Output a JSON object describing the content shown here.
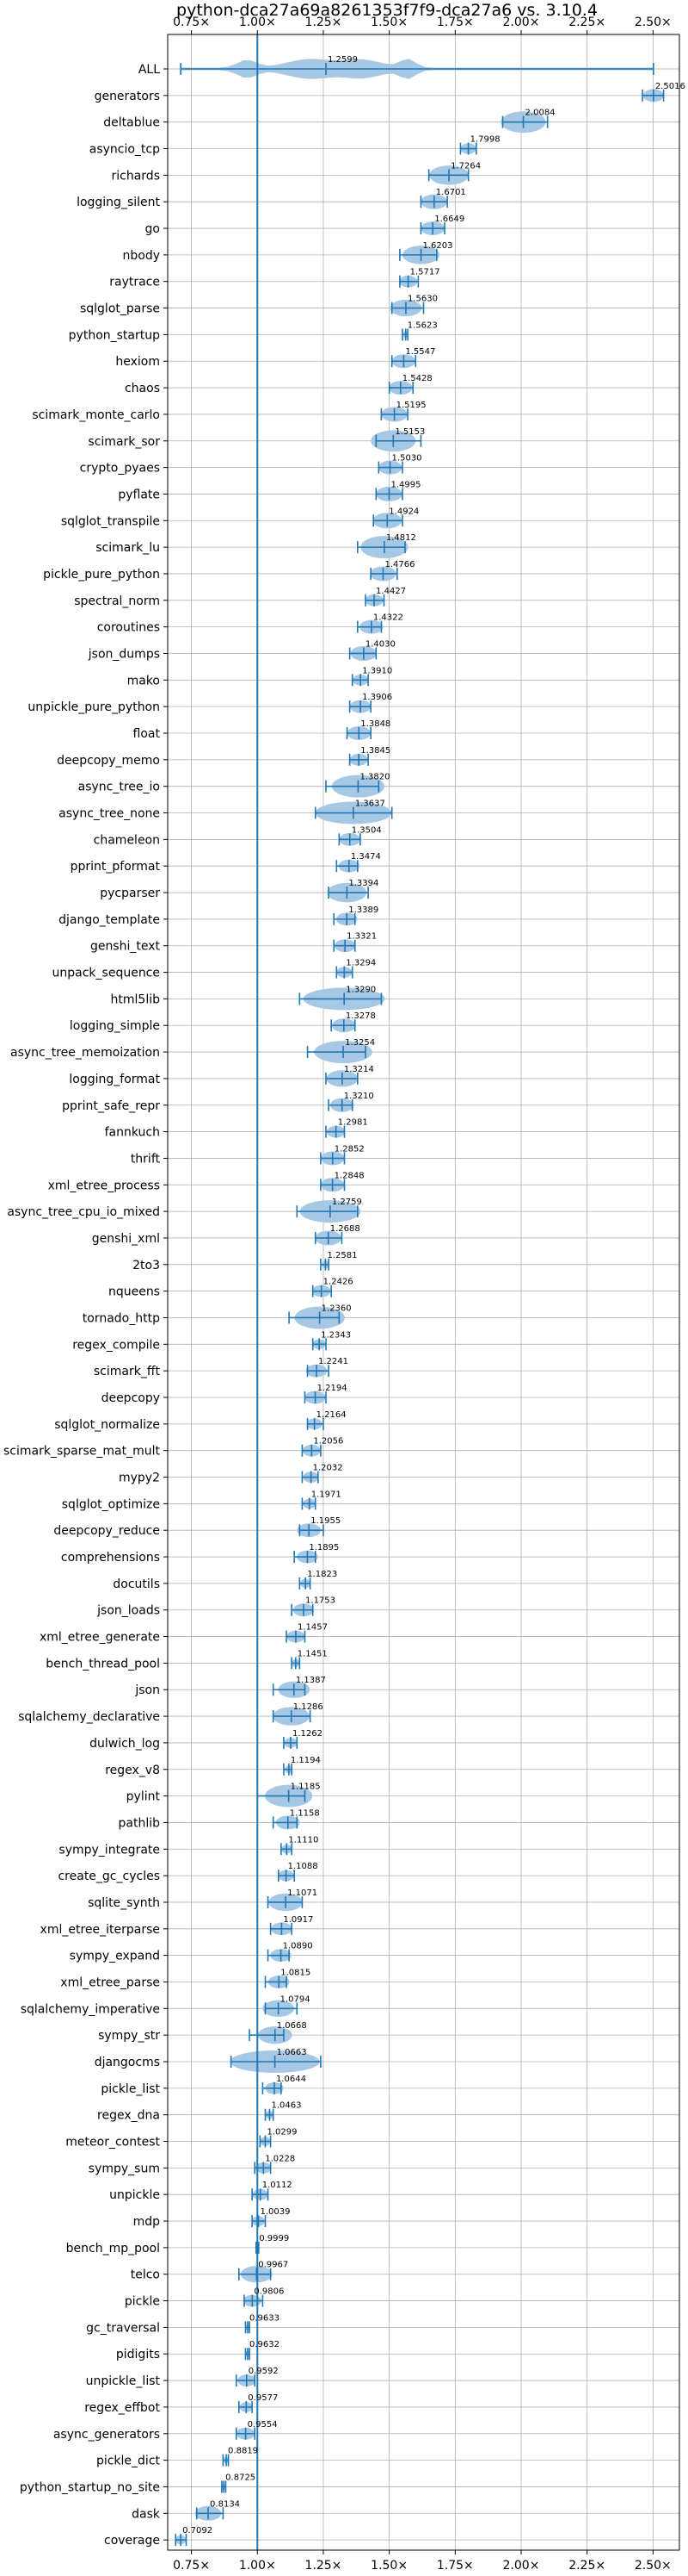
{
  "chart_data": {
    "type": "violin",
    "title": "python-dca27a69a8261353f7f9-dca27a6 vs. 3.10.4",
    "xlabel": "",
    "ylabel": "",
    "x_tick_values": [
      0.75,
      1.0,
      1.25,
      1.5,
      1.75,
      2.0,
      2.25,
      2.5
    ],
    "x_tick_labels": [
      "0.75×",
      "1.00×",
      "1.25×",
      "1.50×",
      "1.75×",
      "2.00×",
      "2.25×",
      "2.50×"
    ],
    "xlim": [
      0.66,
      2.6
    ],
    "reference_line": 1.0,
    "grid": true,
    "colors": {
      "violin": "#a6c8e5",
      "line": "#1f77b4",
      "grid": "#b0b0b0",
      "text": "#000000"
    },
    "benchmarks": [
      {
        "name": "ALL",
        "value": 1.2599,
        "min": 0.7092,
        "max": 2.5016
      },
      {
        "name": "generators",
        "value": 2.5016,
        "min": 2.46,
        "max": 2.54
      },
      {
        "name": "deltablue",
        "value": 2.0084,
        "min": 1.93,
        "max": 2.1
      },
      {
        "name": "asyncio_tcp",
        "value": 1.7998,
        "min": 1.77,
        "max": 1.83
      },
      {
        "name": "richards",
        "value": 1.7264,
        "min": 1.65,
        "max": 1.8
      },
      {
        "name": "logging_silent",
        "value": 1.6701,
        "min": 1.62,
        "max": 1.72
      },
      {
        "name": "go",
        "value": 1.6649,
        "min": 1.62,
        "max": 1.71
      },
      {
        "name": "nbody",
        "value": 1.6203,
        "min": 1.54,
        "max": 1.68
      },
      {
        "name": "raytrace",
        "value": 1.5717,
        "min": 1.54,
        "max": 1.61
      },
      {
        "name": "sqlglot_parse",
        "value": 1.563,
        "min": 1.51,
        "max": 1.63
      },
      {
        "name": "python_startup",
        "value": 1.5623,
        "min": 1.55,
        "max": 1.57
      },
      {
        "name": "hexiom",
        "value": 1.5547,
        "min": 1.51,
        "max": 1.6
      },
      {
        "name": "chaos",
        "value": 1.5428,
        "min": 1.5,
        "max": 1.59
      },
      {
        "name": "scimark_monte_carlo",
        "value": 1.5195,
        "min": 1.47,
        "max": 1.57
      },
      {
        "name": "scimark_sor",
        "value": 1.5153,
        "min": 1.45,
        "max": 1.62
      },
      {
        "name": "crypto_pyaes",
        "value": 1.503,
        "min": 1.46,
        "max": 1.55
      },
      {
        "name": "pyflate",
        "value": 1.4995,
        "min": 1.45,
        "max": 1.55
      },
      {
        "name": "sqlglot_transpile",
        "value": 1.4924,
        "min": 1.44,
        "max": 1.55
      },
      {
        "name": "scimark_lu",
        "value": 1.4812,
        "min": 1.38,
        "max": 1.56
      },
      {
        "name": "pickle_pure_python",
        "value": 1.4766,
        "min": 1.43,
        "max": 1.53
      },
      {
        "name": "spectral_norm",
        "value": 1.4427,
        "min": 1.41,
        "max": 1.48
      },
      {
        "name": "coroutines",
        "value": 1.4322,
        "min": 1.38,
        "max": 1.47
      },
      {
        "name": "json_dumps",
        "value": 1.403,
        "min": 1.35,
        "max": 1.45
      },
      {
        "name": "mako",
        "value": 1.391,
        "min": 1.36,
        "max": 1.42
      },
      {
        "name": "unpickle_pure_python",
        "value": 1.3906,
        "min": 1.35,
        "max": 1.43
      },
      {
        "name": "float",
        "value": 1.3848,
        "min": 1.34,
        "max": 1.43
      },
      {
        "name": "deepcopy_memo",
        "value": 1.3845,
        "min": 1.35,
        "max": 1.42
      },
      {
        "name": "async_tree_io",
        "value": 1.382,
        "min": 1.26,
        "max": 1.46
      },
      {
        "name": "async_tree_none",
        "value": 1.3637,
        "min": 1.22,
        "max": 1.51
      },
      {
        "name": "chameleon",
        "value": 1.3504,
        "min": 1.31,
        "max": 1.39
      },
      {
        "name": "pprint_pformat",
        "value": 1.3474,
        "min": 1.3,
        "max": 1.38
      },
      {
        "name": "pycparser",
        "value": 1.3394,
        "min": 1.27,
        "max": 1.42
      },
      {
        "name": "django_template",
        "value": 1.3389,
        "min": 1.29,
        "max": 1.37
      },
      {
        "name": "genshi_text",
        "value": 1.3321,
        "min": 1.29,
        "max": 1.37
      },
      {
        "name": "unpack_sequence",
        "value": 1.3294,
        "min": 1.3,
        "max": 1.36
      },
      {
        "name": "html5lib",
        "value": 1.329,
        "min": 1.16,
        "max": 1.47
      },
      {
        "name": "logging_simple",
        "value": 1.3278,
        "min": 1.28,
        "max": 1.37
      },
      {
        "name": "async_tree_memoization",
        "value": 1.3254,
        "min": 1.19,
        "max": 1.41
      },
      {
        "name": "logging_format",
        "value": 1.3214,
        "min": 1.26,
        "max": 1.38
      },
      {
        "name": "pprint_safe_repr",
        "value": 1.321,
        "min": 1.27,
        "max": 1.36
      },
      {
        "name": "fannkuch",
        "value": 1.2981,
        "min": 1.26,
        "max": 1.33
      },
      {
        "name": "thrift",
        "value": 1.2852,
        "min": 1.24,
        "max": 1.33
      },
      {
        "name": "xml_etree_process",
        "value": 1.2848,
        "min": 1.24,
        "max": 1.33
      },
      {
        "name": "async_tree_cpu_io_mixed",
        "value": 1.2759,
        "min": 1.15,
        "max": 1.38
      },
      {
        "name": "genshi_xml",
        "value": 1.2688,
        "min": 1.22,
        "max": 1.32
      },
      {
        "name": "2to3",
        "value": 1.2581,
        "min": 1.24,
        "max": 1.27
      },
      {
        "name": "nqueens",
        "value": 1.2426,
        "min": 1.21,
        "max": 1.28
      },
      {
        "name": "tornado_http",
        "value": 1.236,
        "min": 1.12,
        "max": 1.31
      },
      {
        "name": "regex_compile",
        "value": 1.2343,
        "min": 1.21,
        "max": 1.26
      },
      {
        "name": "scimark_fft",
        "value": 1.2241,
        "min": 1.19,
        "max": 1.27
      },
      {
        "name": "deepcopy",
        "value": 1.2194,
        "min": 1.18,
        "max": 1.26
      },
      {
        "name": "sqlglot_normalize",
        "value": 1.2164,
        "min": 1.19,
        "max": 1.25
      },
      {
        "name": "scimark_sparse_mat_mult",
        "value": 1.2056,
        "min": 1.17,
        "max": 1.24
      },
      {
        "name": "mypy2",
        "value": 1.2032,
        "min": 1.17,
        "max": 1.23
      },
      {
        "name": "sqlglot_optimize",
        "value": 1.1971,
        "min": 1.17,
        "max": 1.22
      },
      {
        "name": "deepcopy_reduce",
        "value": 1.1955,
        "min": 1.16,
        "max": 1.25
      },
      {
        "name": "comprehensions",
        "value": 1.1895,
        "min": 1.14,
        "max": 1.22
      },
      {
        "name": "docutils",
        "value": 1.1823,
        "min": 1.16,
        "max": 1.2
      },
      {
        "name": "json_loads",
        "value": 1.1753,
        "min": 1.13,
        "max": 1.21
      },
      {
        "name": "xml_etree_generate",
        "value": 1.1457,
        "min": 1.11,
        "max": 1.18
      },
      {
        "name": "bench_thread_pool",
        "value": 1.1451,
        "min": 1.13,
        "max": 1.16
      },
      {
        "name": "json",
        "value": 1.1387,
        "min": 1.06,
        "max": 1.18
      },
      {
        "name": "sqlalchemy_declarative",
        "value": 1.1286,
        "min": 1.06,
        "max": 1.2
      },
      {
        "name": "dulwich_log",
        "value": 1.1262,
        "min": 1.1,
        "max": 1.15
      },
      {
        "name": "regex_v8",
        "value": 1.1194,
        "min": 1.1,
        "max": 1.13
      },
      {
        "name": "pylint",
        "value": 1.1185,
        "min": 1.0,
        "max": 1.18
      },
      {
        "name": "pathlib",
        "value": 1.1158,
        "min": 1.06,
        "max": 1.15
      },
      {
        "name": "sympy_integrate",
        "value": 1.111,
        "min": 1.09,
        "max": 1.13
      },
      {
        "name": "create_gc_cycles",
        "value": 1.1088,
        "min": 1.08,
        "max": 1.14
      },
      {
        "name": "sqlite_synth",
        "value": 1.1071,
        "min": 1.04,
        "max": 1.17
      },
      {
        "name": "xml_etree_iterparse",
        "value": 1.0917,
        "min": 1.05,
        "max": 1.13
      },
      {
        "name": "sympy_expand",
        "value": 1.089,
        "min": 1.04,
        "max": 1.12
      },
      {
        "name": "xml_etree_parse",
        "value": 1.0815,
        "min": 1.03,
        "max": 1.11
      },
      {
        "name": "sqlalchemy_imperative",
        "value": 1.0794,
        "min": 1.03,
        "max": 1.15
      },
      {
        "name": "sympy_str",
        "value": 1.0668,
        "min": 0.97,
        "max": 1.1
      },
      {
        "name": "djangocms",
        "value": 1.0663,
        "min": 0.9,
        "max": 1.24
      },
      {
        "name": "pickle_list",
        "value": 1.0644,
        "min": 1.02,
        "max": 1.09
      },
      {
        "name": "regex_dna",
        "value": 1.0463,
        "min": 1.03,
        "max": 1.06
      },
      {
        "name": "meteor_contest",
        "value": 1.0299,
        "min": 1.01,
        "max": 1.05
      },
      {
        "name": "sympy_sum",
        "value": 1.0228,
        "min": 0.99,
        "max": 1.05
      },
      {
        "name": "unpickle",
        "value": 1.0112,
        "min": 0.98,
        "max": 1.04
      },
      {
        "name": "mdp",
        "value": 1.0039,
        "min": 0.98,
        "max": 1.03
      },
      {
        "name": "bench_mp_pool",
        "value": 0.9999,
        "min": 0.995,
        "max": 1.005
      },
      {
        "name": "telco",
        "value": 0.9967,
        "min": 0.93,
        "max": 1.05
      },
      {
        "name": "pickle",
        "value": 0.9806,
        "min": 0.95,
        "max": 1.02
      },
      {
        "name": "gc_traversal",
        "value": 0.9633,
        "min": 0.955,
        "max": 0.97
      },
      {
        "name": "pidigits",
        "value": 0.9632,
        "min": 0.955,
        "max": 0.97
      },
      {
        "name": "unpickle_list",
        "value": 0.9592,
        "min": 0.92,
        "max": 0.99
      },
      {
        "name": "regex_effbot",
        "value": 0.9577,
        "min": 0.93,
        "max": 0.98
      },
      {
        "name": "async_generators",
        "value": 0.9554,
        "min": 0.92,
        "max": 0.99
      },
      {
        "name": "pickle_dict",
        "value": 0.8819,
        "min": 0.87,
        "max": 0.89
      },
      {
        "name": "python_startup_no_site",
        "value": 0.8725,
        "min": 0.865,
        "max": 0.88
      },
      {
        "name": "dask",
        "value": 0.8134,
        "min": 0.77,
        "max": 0.87
      },
      {
        "name": "coverage",
        "value": 0.7092,
        "min": 0.69,
        "max": 0.73
      }
    ]
  }
}
